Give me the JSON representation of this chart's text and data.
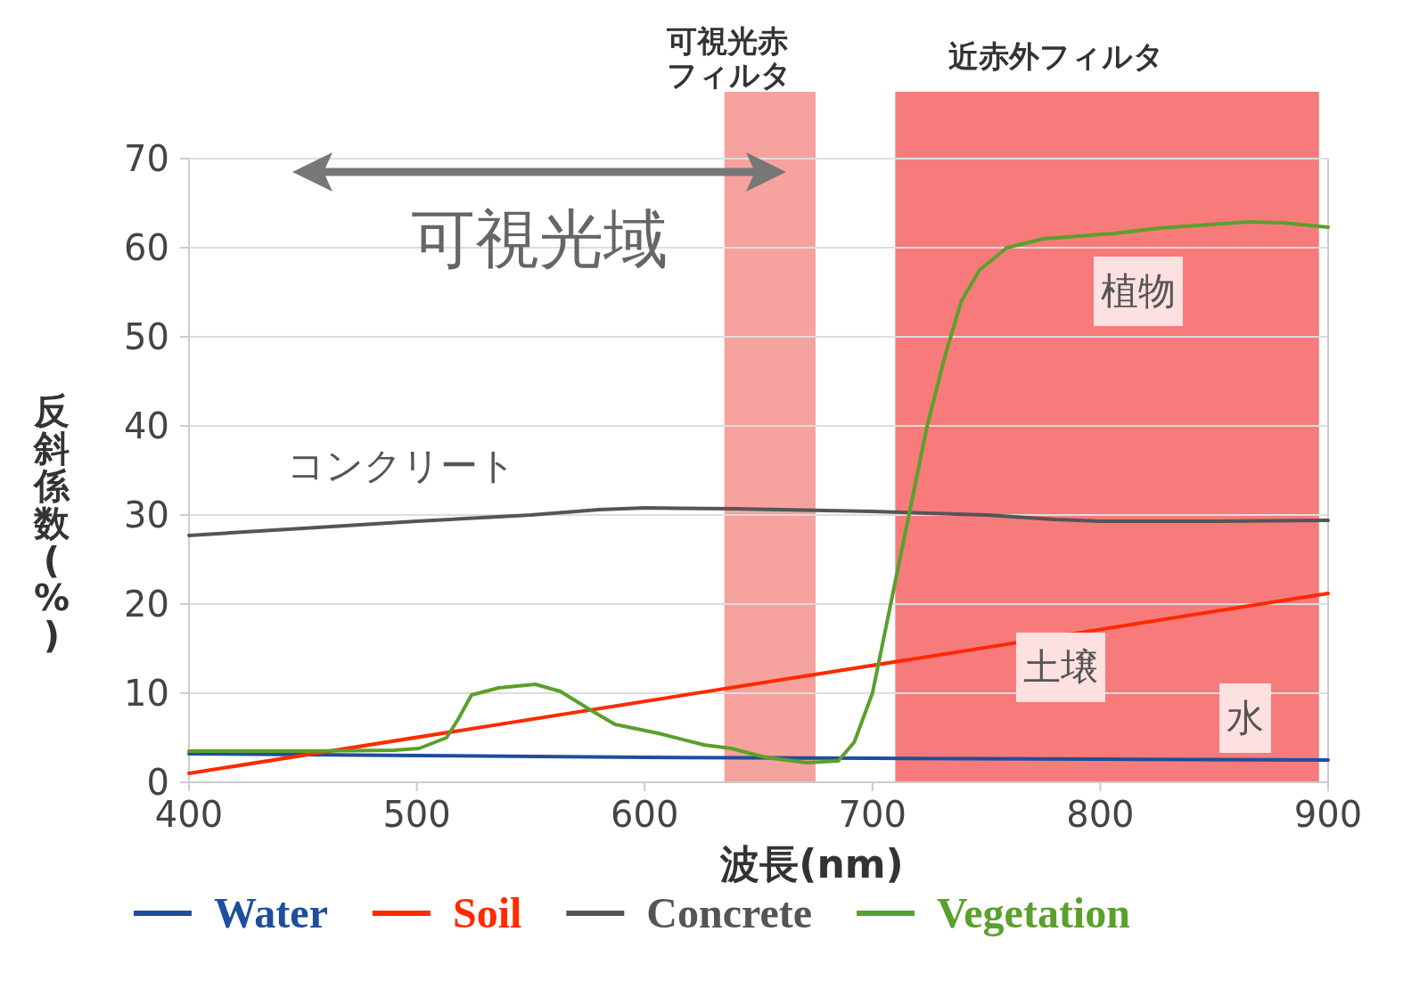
{
  "chart_data": {
    "type": "line",
    "xlabel": "波長(nm)",
    "ylabel": "反斜係数(%)",
    "xlim": [
      400,
      900
    ],
    "ylim": [
      0,
      70
    ],
    "xticks": [
      400,
      500,
      600,
      700,
      800,
      900
    ],
    "yticks": [
      0,
      10,
      20,
      30,
      40,
      50,
      60,
      70
    ],
    "grid": "y",
    "legend": "bottom",
    "bands": [
      {
        "axis": "x",
        "from": 635,
        "to": 675,
        "label": "可視光赤フィルタ",
        "color": "#f6a29e"
      },
      {
        "axis": "x",
        "from": 710,
        "to": 896,
        "label": "近赤外フィルタ",
        "color": "#f77b7b"
      }
    ],
    "annotations": [
      "可視光域",
      "コンクリート",
      "植物",
      "土壌",
      "水"
    ],
    "series": [
      {
        "name": "Water",
        "color": "#1f4e9c",
        "x": [
          400,
          500,
          600,
          700,
          800,
          900
        ],
        "values": [
          3.2,
          3.0,
          2.8,
          2.7,
          2.6,
          2.5
        ]
      },
      {
        "name": "Soil",
        "color": "#ff2a00",
        "x": [
          400,
          900
        ],
        "values": [
          1.0,
          21.2
        ]
      },
      {
        "name": "Concrete",
        "color": "#555555",
        "x": [
          400,
          450,
          500,
          550,
          580,
          600,
          640,
          700,
          750,
          780,
          800,
          850,
          900
        ],
        "values": [
          27.7,
          28.5,
          29.3,
          30.0,
          30.6,
          30.8,
          30.7,
          30.4,
          30.0,
          29.5,
          29.3,
          29.3,
          29.4
        ]
      },
      {
        "name": "Vegetation",
        "color": "#5aa02c",
        "x": [
          400,
          450,
          490,
          501,
          513,
          518,
          524,
          536,
          552,
          563,
          577,
          587,
          606,
          626,
          638,
          653,
          671,
          685,
          692,
          700,
          708,
          716,
          724,
          732,
          739,
          747,
          759,
          775,
          806,
          826,
          865,
          880,
          900
        ],
        "values": [
          3.5,
          3.5,
          3.6,
          3.8,
          5.0,
          7.0,
          9.8,
          10.6,
          11.0,
          10.2,
          8.0,
          6.5,
          5.5,
          4.2,
          3.8,
          2.8,
          2.2,
          2.4,
          4.5,
          10,
          20,
          30,
          40,
          48,
          54,
          57.5,
          60,
          61,
          61.6,
          62.2,
          62.9,
          62.8,
          62.3
        ]
      }
    ]
  }
}
